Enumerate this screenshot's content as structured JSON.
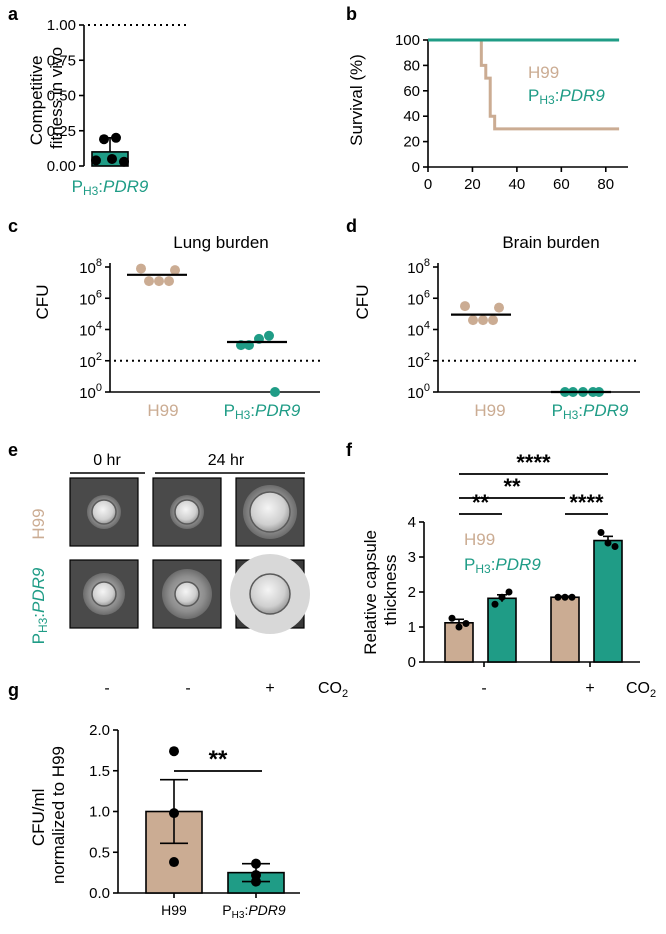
{
  "colors": {
    "h99": "#cbac93",
    "pdr9": "#1f9c86",
    "black": "#000000"
  },
  "labels": {
    "h99": "H99",
    "p_main": "P",
    "p_sub": "H3",
    "p_gene": "PDR9",
    "co2_main": "CO",
    "co2_sub": "2",
    "hr0": "0 hr",
    "hr24": "24 hr",
    "sign_minus": "-",
    "sign_plus": "+"
  },
  "chart_data": [
    {
      "panel": "a",
      "type": "bar",
      "ylabel": [
        "Competitive",
        "fitness in vivo"
      ],
      "ylim": [
        0,
        1.0
      ],
      "yticks": [
        "0.00",
        "0.25",
        "0.50",
        "0.75",
        "1.00"
      ],
      "reference_line": 1.0,
      "categories": [
        "PH3:PDR9"
      ],
      "values": [
        0.1
      ],
      "error": 0.1,
      "points": [
        0.04,
        0.19,
        0.2,
        0.03,
        0.05
      ]
    },
    {
      "panel": "b",
      "type": "line",
      "ylabel": "Survival (%)",
      "xlim": [
        0,
        90
      ],
      "ylim": [
        0,
        100
      ],
      "xticks": [
        "0",
        "20",
        "40",
        "60",
        "80"
      ],
      "yticks": [
        "0",
        "20",
        "40",
        "60",
        "80",
        "100"
      ],
      "series": [
        {
          "name": "H99",
          "x": [
            0,
            24,
            24,
            26,
            26,
            28,
            28,
            30,
            30,
            86
          ],
          "y": [
            100,
            100,
            80,
            80,
            70,
            70,
            40,
            40,
            30,
            30
          ]
        },
        {
          "name": "PH3:PDR9",
          "x": [
            0,
            86
          ],
          "y": [
            100,
            100
          ]
        }
      ],
      "legend": [
        "H99",
        "PH3:PDR9"
      ]
    },
    {
      "panel": "c",
      "type": "scatter",
      "title": "Lung burden",
      "ylabel": "CFU",
      "ylim_log10": [
        0,
        8
      ],
      "yticks": [
        {
          "base": "10",
          "exp": "8"
        },
        {
          "base": "10",
          "exp": "6"
        },
        {
          "base": "10",
          "exp": "4"
        },
        {
          "base": "10",
          "exp": "2"
        },
        {
          "base": "10",
          "exp": "0"
        }
      ],
      "detection_limit_log10": 2,
      "categories": [
        "H99",
        "PH3:PDR9"
      ],
      "means_log10": [
        7.5,
        3.2
      ],
      "points_log10": [
        [
          7.9,
          7.1,
          7.1,
          7.1,
          7.8
        ],
        [
          3.0,
          3.0,
          3.4,
          3.6,
          0.0
        ]
      ]
    },
    {
      "panel": "d",
      "type": "scatter",
      "title": "Brain burden",
      "ylabel": "CFU",
      "ylim_log10": [
        0,
        8
      ],
      "yticks": [
        {
          "base": "10",
          "exp": "8"
        },
        {
          "base": "10",
          "exp": "6"
        },
        {
          "base": "10",
          "exp": "4"
        },
        {
          "base": "10",
          "exp": "2"
        },
        {
          "base": "10",
          "exp": "0"
        }
      ],
      "detection_limit_log10": 2,
      "categories": [
        "H99",
        "PH3:PDR9"
      ],
      "means_log10": [
        4.95,
        0
      ],
      "points_log10": [
        [
          5.5,
          4.6,
          4.6,
          4.6,
          5.4
        ],
        [
          0,
          0,
          0,
          0,
          0
        ]
      ]
    },
    {
      "panel": "f",
      "type": "bar",
      "ylabel": [
        "Relative capsule",
        "thickness"
      ],
      "ylim": [
        0,
        4
      ],
      "yticks": [
        "0",
        "1",
        "2",
        "3",
        "4"
      ],
      "groups": [
        "-",
        "+"
      ],
      "series": [
        {
          "name": "H99",
          "values": [
            1.12,
            1.85
          ],
          "errors": [
            0.1,
            0.03
          ],
          "points": [
            [
              1.25,
              1.0,
              1.1
            ],
            [
              1.85,
              1.85,
              1.85
            ]
          ]
        },
        {
          "name": "PH3:PDR9",
          "values": [
            1.82,
            3.47
          ],
          "errors": [
            0.1,
            0.12
          ],
          "points": [
            [
              1.65,
              1.85,
              2.0
            ],
            [
              3.7,
              3.4,
              3.3
            ]
          ]
        }
      ],
      "significance": [
        "**",
        "**",
        "****",
        "****"
      ],
      "legend": [
        "H99",
        "PH3:PDR9"
      ]
    },
    {
      "panel": "g",
      "type": "bar",
      "ylabel": [
        "CFU/ml",
        "normalized to H99"
      ],
      "ylim": [
        0,
        2.0
      ],
      "yticks": [
        "0.0",
        "0.5",
        "1.0",
        "1.5",
        "2.0"
      ],
      "categories": [
        "H99",
        "PH3:PDR9"
      ],
      "values": [
        1.0,
        0.25
      ],
      "errors": [
        0.39,
        0.11
      ],
      "points": [
        [
          1.74,
          0.98,
          0.38
        ],
        [
          0.36,
          0.22,
          0.14
        ]
      ],
      "significance": "**"
    }
  ],
  "micrographs": {
    "time_headers": [
      "0 hr",
      "24 hr"
    ],
    "rows": [
      "H99",
      "PH3:PDR9"
    ],
    "conditions": [
      "-",
      "-",
      "+"
    ]
  },
  "panel_letters": [
    "a",
    "b",
    "c",
    "d",
    "e",
    "f",
    "g"
  ]
}
